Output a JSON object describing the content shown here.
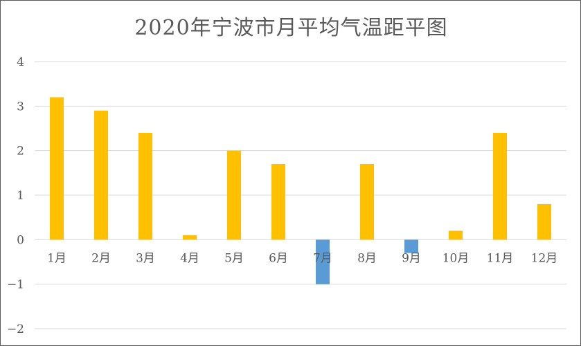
{
  "chart_data": {
    "type": "bar",
    "title": "2020年宁波市月平均气温距平图",
    "xlabel": "",
    "ylabel": "",
    "categories": [
      "1月",
      "2月",
      "3月",
      "4月",
      "5月",
      "6月",
      "7月",
      "8月",
      "9月",
      "10月",
      "11月",
      "12月"
    ],
    "values": [
      3.2,
      2.9,
      2.4,
      0.1,
      2.0,
      1.7,
      -1.0,
      1.7,
      -0.3,
      0.2,
      2.4,
      0.8
    ],
    "ylim": [
      -2,
      4
    ],
    "yticks": [
      "4",
      "3",
      "2",
      "1",
      "0",
      "−1",
      "−2"
    ],
    "grid": true,
    "legend": "none",
    "colors": {
      "positive": "#ffc000",
      "negative": "#5b9bd5",
      "grid": "#d9d9d9",
      "text": "#595959"
    }
  }
}
